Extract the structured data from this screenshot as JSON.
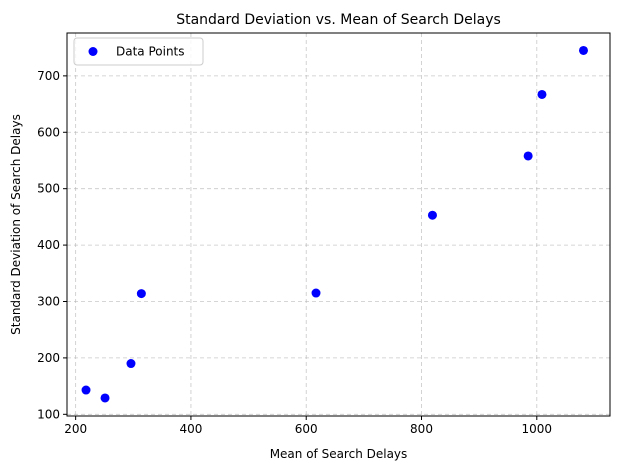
{
  "chart_data": {
    "type": "scatter",
    "title": "Standard Deviation vs. Mean of Search Delays",
    "xlabel": "Mean of Search Delays",
    "ylabel": "Standard Deviation of Search Delays",
    "xlim": [
      185,
      1127
    ],
    "ylim": [
      97,
      776
    ],
    "xticks": [
      200,
      400,
      600,
      800,
      1000
    ],
    "yticks": [
      100,
      200,
      300,
      400,
      500,
      600,
      700
    ],
    "grid": true,
    "legend_position": "top-left",
    "series": [
      {
        "name": "Data Points",
        "color": "#0000ff",
        "points": [
          {
            "x": 218,
            "y": 143
          },
          {
            "x": 251,
            "y": 129
          },
          {
            "x": 296,
            "y": 190
          },
          {
            "x": 314,
            "y": 314
          },
          {
            "x": 617,
            "y": 315
          },
          {
            "x": 819,
            "y": 453
          },
          {
            "x": 985,
            "y": 558
          },
          {
            "x": 1009,
            "y": 667
          },
          {
            "x": 1081,
            "y": 745
          }
        ]
      }
    ]
  }
}
